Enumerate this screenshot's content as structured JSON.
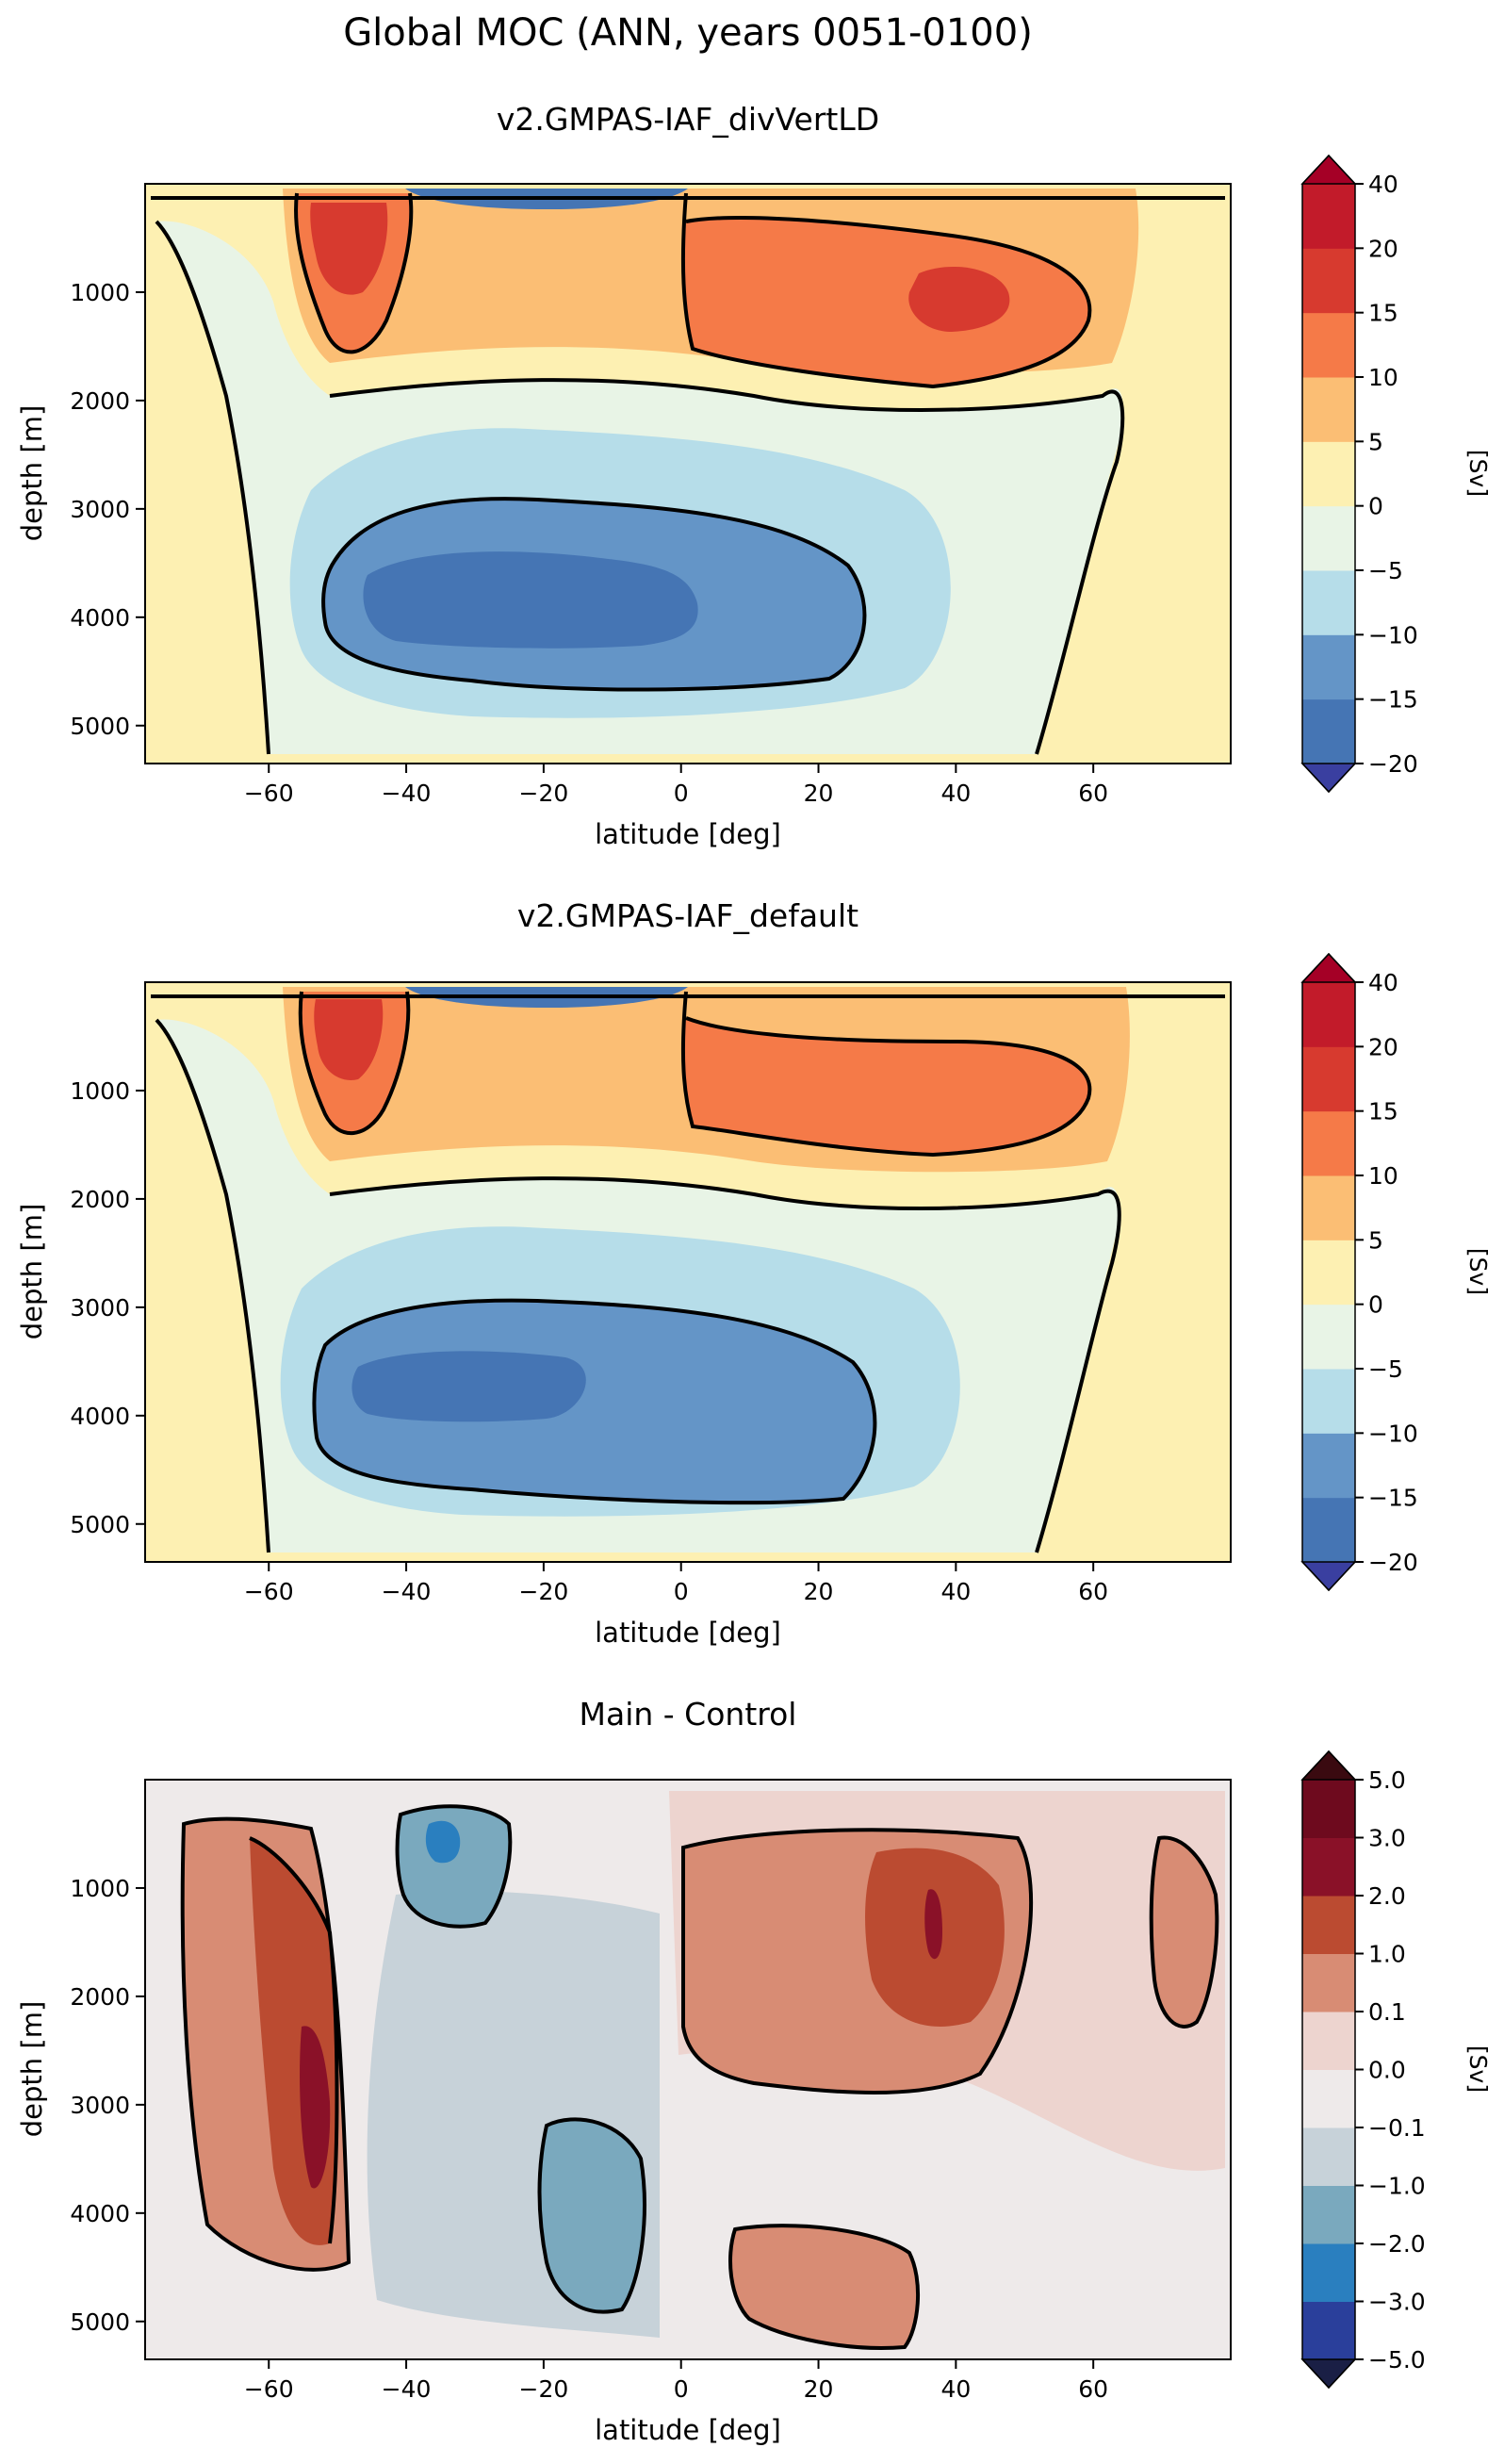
{
  "suptitle": "Global MOC (ANN, years 0051-0100)",
  "chart_data": [
    {
      "type": "heatmap",
      "title": "v2.GMPAS-IAF_divVertLD",
      "xlabel": "latitude [deg]",
      "ylabel": "depth [m]",
      "xlim": [
        -78,
        80
      ],
      "ylim": [
        5350,
        0
      ],
      "x_ticks": [
        -60,
        -40,
        -20,
        0,
        20,
        40,
        60
      ],
      "x_tick_labels": [
        "−60",
        "−40",
        "−20",
        "0",
        "20",
        "40",
        "60"
      ],
      "y_ticks": [
        1000,
        2000,
        3000,
        4000,
        5000
      ],
      "y_tick_labels": [
        "1000",
        "2000",
        "3000",
        "4000",
        "5000"
      ],
      "colorbar": {
        "label": "[Sv]",
        "levels": [
          -20,
          -15,
          -10,
          -5,
          0,
          5,
          10,
          15,
          20,
          40
        ],
        "tick_labels": [
          "−20",
          "−15",
          "−10",
          "−5",
          "0",
          "5",
          "10",
          "15",
          "20",
          "40"
        ],
        "colors": [
          "#4575b4",
          "#6495c7",
          "#b6dde9",
          "#e8f4e6",
          "#fdf0b2",
          "#fbbe74",
          "#f57a48",
          "#d73a2f",
          "#c21b2a"
        ],
        "under_color": "#3a3fa0",
        "over_color": "#a50026"
      }
    },
    {
      "type": "heatmap",
      "title": "v2.GMPAS-IAF_default",
      "xlabel": "latitude [deg]",
      "ylabel": "depth [m]",
      "xlim": [
        -78,
        80
      ],
      "ylim": [
        5350,
        0
      ],
      "x_ticks": [
        -60,
        -40,
        -20,
        0,
        20,
        40,
        60
      ],
      "x_tick_labels": [
        "−60",
        "−40",
        "−20",
        "0",
        "20",
        "40",
        "60"
      ],
      "y_ticks": [
        1000,
        2000,
        3000,
        4000,
        5000
      ],
      "y_tick_labels": [
        "1000",
        "2000",
        "3000",
        "4000",
        "5000"
      ],
      "colorbar": {
        "label": "[Sv]",
        "levels": [
          -20,
          -15,
          -10,
          -5,
          0,
          5,
          10,
          15,
          20,
          40
        ],
        "tick_labels": [
          "−20",
          "−15",
          "−10",
          "−5",
          "0",
          "5",
          "10",
          "15",
          "20",
          "40"
        ],
        "colors": [
          "#4575b4",
          "#6495c7",
          "#b6dde9",
          "#e8f4e6",
          "#fdf0b2",
          "#fbbe74",
          "#f57a48",
          "#d73a2f",
          "#c21b2a"
        ],
        "under_color": "#3a3fa0",
        "over_color": "#a50026"
      }
    },
    {
      "type": "heatmap",
      "title": "Main - Control",
      "xlabel": "latitude [deg]",
      "ylabel": "depth [m]",
      "xlim": [
        -78,
        80
      ],
      "ylim": [
        5350,
        0
      ],
      "x_ticks": [
        -60,
        -40,
        -20,
        0,
        20,
        40,
        60
      ],
      "x_tick_labels": [
        "−60",
        "−40",
        "−20",
        "0",
        "20",
        "40",
        "60"
      ],
      "y_ticks": [
        1000,
        2000,
        3000,
        4000,
        5000
      ],
      "y_tick_labels": [
        "1000",
        "2000",
        "3000",
        "4000",
        "5000"
      ],
      "colorbar": {
        "label": "[Sv]",
        "levels": [
          -5.0,
          -3.0,
          -2.0,
          -1.0,
          -0.1,
          0.0,
          0.1,
          1.0,
          2.0,
          3.0,
          5.0
        ],
        "tick_labels": [
          "−5.0",
          "−3.0",
          "−2.0",
          "−1.0",
          "−0.1",
          "0.0",
          "0.1",
          "1.0",
          "2.0",
          "3.0",
          "5.0"
        ],
        "colors": [
          "#2a3f9b",
          "#2a7fbf",
          "#7aa9be",
          "#c7d2d9",
          "#eeeaea",
          "#edd4cf",
          "#d88c74",
          "#bb4b31",
          "#8a1128",
          "#6e0a1e"
        ],
        "under_color": "#1a1f45",
        "over_color": "#3a0a10"
      }
    }
  ]
}
